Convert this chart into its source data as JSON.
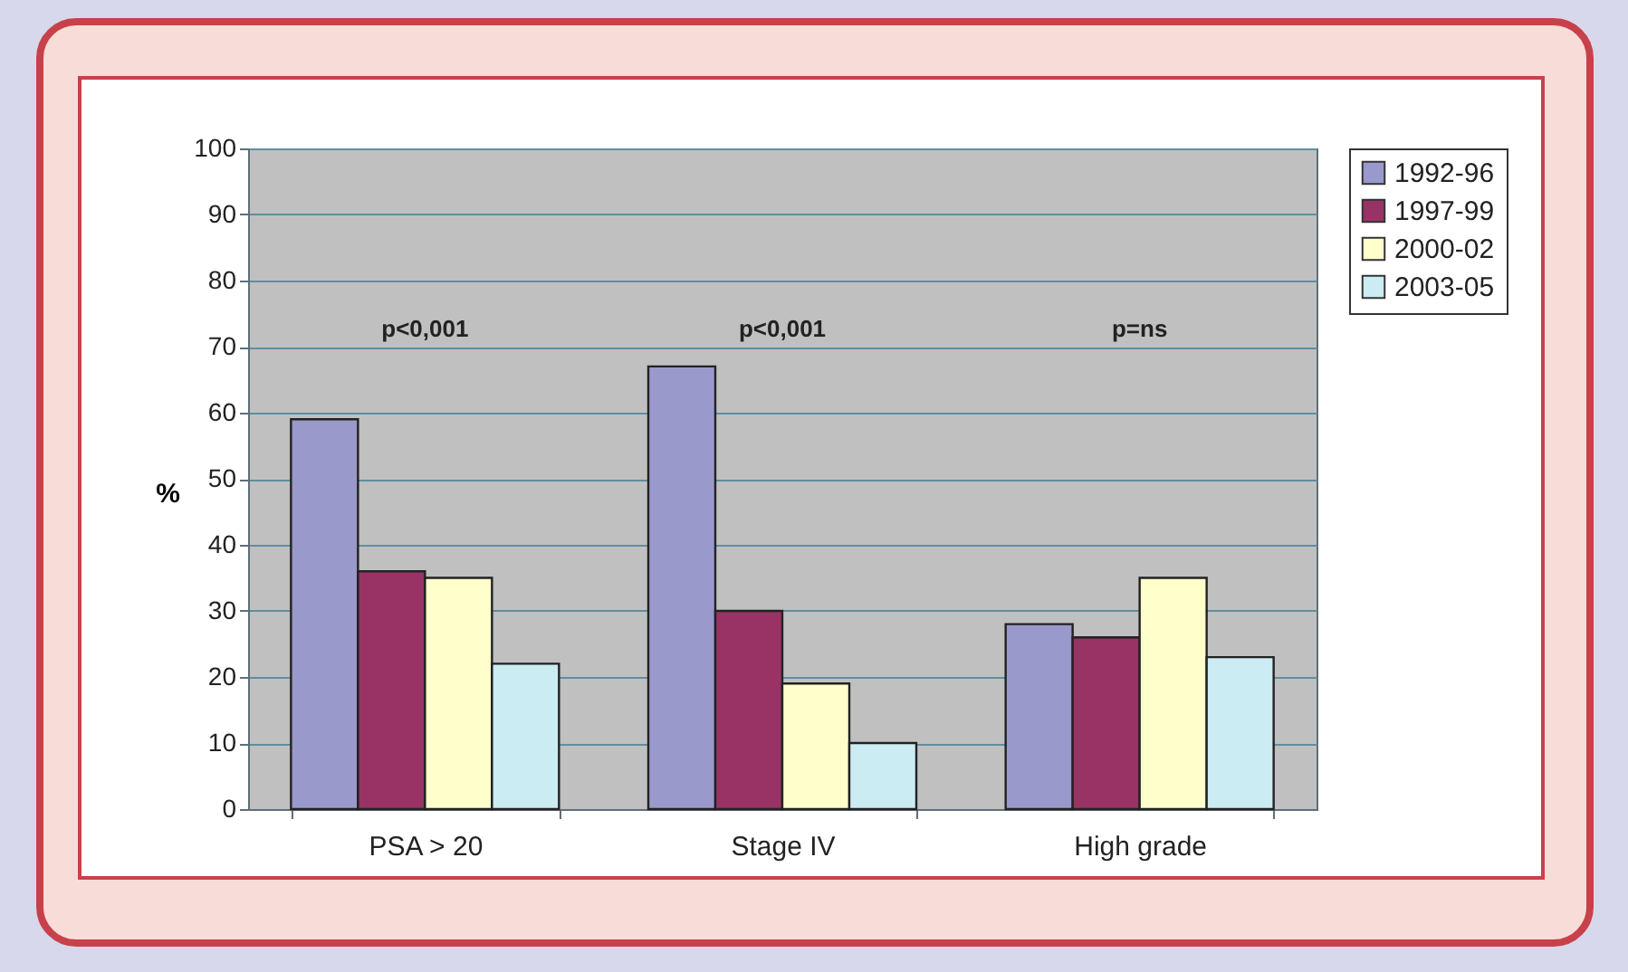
{
  "chart_data": {
    "type": "bar",
    "ylabel": "%",
    "categories": [
      "PSA > 20",
      "Stage IV",
      "High grade"
    ],
    "series": [
      {
        "name": "1992-96",
        "color": "#9999cc",
        "values": [
          59,
          67,
          28
        ]
      },
      {
        "name": "1997-99",
        "color": "#993366",
        "values": [
          36,
          30,
          26
        ]
      },
      {
        "name": "2000-02",
        "color": "#ffffcc",
        "values": [
          35,
          19,
          35
        ]
      },
      {
        "name": "2003-05",
        "color": "#ccecf4",
        "values": [
          22,
          10,
          23
        ]
      }
    ],
    "ylim": [
      0,
      100
    ],
    "yticks": [
      0,
      10,
      20,
      30,
      40,
      50,
      60,
      70,
      80,
      90,
      100
    ],
    "grid": "y",
    "legend": "right",
    "annotations": [
      "p<0,001",
      "p<0,001",
      "p=ns"
    ]
  }
}
